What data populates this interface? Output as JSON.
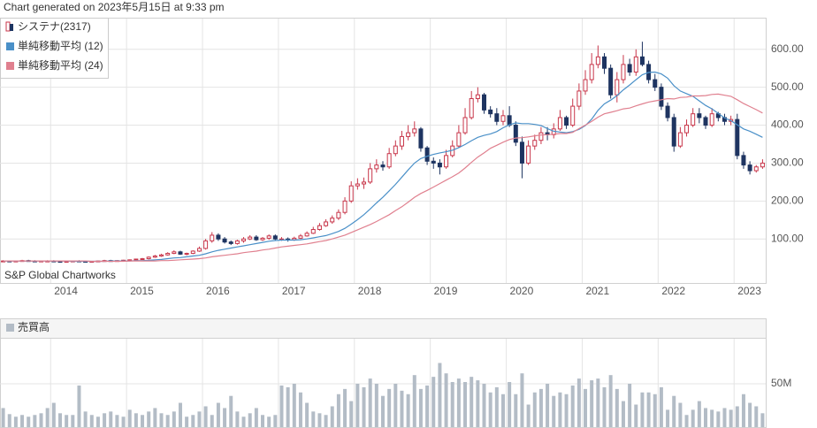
{
  "header": "Chart generated on 2023年5月15日 at 9:33 pm",
  "chart_data": [
    {
      "type": "candlestick",
      "source": "S&P Global Chartworks",
      "categories": [
        null,
        null,
        null,
        null,
        null,
        null,
        null,
        null,
        "2014",
        null,
        null,
        null,
        null,
        null,
        null,
        null,
        null,
        null,
        null,
        null,
        "2015",
        null,
        null,
        null,
        null,
        null,
        null,
        null,
        null,
        null,
        null,
        null,
        "2016",
        null,
        null,
        null,
        null,
        null,
        null,
        null,
        null,
        null,
        null,
        null,
        "2017",
        null,
        null,
        null,
        null,
        null,
        null,
        null,
        null,
        null,
        null,
        null,
        "2018",
        null,
        null,
        null,
        null,
        null,
        null,
        null,
        null,
        null,
        null,
        null,
        "2019",
        null,
        null,
        null,
        null,
        null,
        null,
        null,
        null,
        null,
        null,
        null,
        "2020",
        null,
        null,
        null,
        null,
        null,
        null,
        null,
        null,
        null,
        null,
        null,
        "2021",
        null,
        null,
        null,
        null,
        null,
        null,
        null,
        null,
        null,
        null,
        null,
        "2022",
        null,
        null,
        null,
        null,
        null,
        null,
        null,
        null,
        null,
        null,
        null,
        "2023",
        null,
        null,
        null,
        null
      ],
      "ohlc": {
        "name": "システナ(2317)",
        "up_color": "#c8364a",
        "down_color": "#1e3461",
        "open": [
          42,
          42,
          41,
          42,
          43,
          42,
          41,
          42,
          42,
          41,
          40,
          41,
          42,
          41,
          40,
          41,
          42,
          43,
          42,
          43,
          44,
          45,
          47,
          48,
          52,
          55,
          58,
          62,
          66,
          60,
          62,
          68,
          75,
          95,
          110,
          100,
          92,
          88,
          95,
          100,
          105,
          98,
          102,
          108,
          100,
          100,
          98,
          102,
          108,
          115,
          125,
          135,
          145,
          155,
          170,
          200,
          240,
          245,
          250,
          285,
          295,
          290,
          325,
          345,
          370,
          380,
          390,
          340,
          305,
          300,
          290,
          320,
          345,
          380,
          420,
          470,
          480,
          440,
          430,
          410,
          425,
          400,
          355,
          300,
          345,
          360,
          380,
          375,
          390,
          420,
          400,
          450,
          490,
          520,
          560,
          580,
          550,
          480,
          520,
          560,
          540,
          580,
          560,
          520,
          500,
          450,
          420,
          345,
          380,
          400,
          430,
          420,
          400,
          430,
          420,
          410,
          415,
          320,
          295,
          280,
          290
        ],
        "high": [
          44,
          43,
          43,
          45,
          45,
          44,
          43,
          44,
          44,
          43,
          42,
          43,
          44,
          43,
          42,
          43,
          45,
          45,
          44,
          45,
          46,
          48,
          50,
          54,
          58,
          61,
          65,
          70,
          69,
          64,
          70,
          80,
          100,
          118,
          115,
          105,
          96,
          98,
          105,
          110,
          110,
          105,
          112,
          112,
          105,
          104,
          106,
          113,
          120,
          132,
          142,
          152,
          162,
          178,
          210,
          252,
          260,
          262,
          300,
          310,
          305,
          340,
          360,
          385,
          400,
          410,
          395,
          345,
          315,
          310,
          335,
          360,
          400,
          445,
          490,
          500,
          485,
          450,
          445,
          440,
          450,
          410,
          370,
          360,
          375,
          395,
          395,
          405,
          440,
          425,
          470,
          510,
          545,
          590,
          610,
          590,
          560,
          540,
          585,
          575,
          600,
          620,
          570,
          535,
          510,
          460,
          430,
          395,
          415,
          445,
          445,
          425,
          445,
          435,
          430,
          425,
          430,
          330,
          305,
          295,
          310
        ],
        "low": [
          40,
          39,
          39,
          40,
          40,
          39,
          39,
          40,
          39,
          38,
          38,
          39,
          39,
          38,
          38,
          39,
          40,
          40,
          40,
          41,
          42,
          43,
          45,
          46,
          50,
          53,
          56,
          60,
          58,
          57,
          60,
          66,
          72,
          90,
          95,
          88,
          84,
          85,
          90,
          97,
          95,
          95,
          98,
          97,
          95,
          93,
          95,
          100,
          106,
          113,
          122,
          132,
          140,
          150,
          165,
          195,
          230,
          232,
          245,
          275,
          280,
          285,
          318,
          335,
          360,
          370,
          330,
          295,
          285,
          270,
          285,
          315,
          340,
          375,
          415,
          460,
          430,
          420,
          400,
          400,
          395,
          345,
          260,
          295,
          335,
          350,
          360,
          365,
          385,
          390,
          395,
          440,
          480,
          510,
          550,
          535,
          470,
          460,
          510,
          530,
          530,
          555,
          510,
          490,
          440,
          410,
          330,
          340,
          370,
          395,
          405,
          390,
          395,
          410,
          400,
          400,
          310,
          285,
          270,
          275,
          285
        ],
        "close": [
          42,
          41,
          42,
          43,
          42,
          41,
          42,
          42,
          41,
          40,
          41,
          42,
          41,
          40,
          41,
          42,
          43,
          42,
          43,
          44,
          45,
          47,
          48,
          52,
          55,
          58,
          62,
          66,
          60,
          62,
          68,
          75,
          95,
          110,
          100,
          92,
          88,
          95,
          100,
          105,
          98,
          102,
          108,
          100,
          100,
          98,
          102,
          108,
          115,
          125,
          135,
          145,
          155,
          170,
          200,
          240,
          245,
          250,
          285,
          295,
          290,
          325,
          345,
          370,
          380,
          390,
          340,
          305,
          300,
          290,
          320,
          345,
          380,
          420,
          470,
          480,
          440,
          430,
          410,
          425,
          400,
          355,
          300,
          345,
          360,
          380,
          375,
          390,
          420,
          400,
          450,
          490,
          520,
          560,
          580,
          550,
          480,
          520,
          560,
          540,
          580,
          560,
          520,
          500,
          450,
          420,
          345,
          380,
          400,
          430,
          420,
          400,
          430,
          420,
          410,
          415,
          320,
          295,
          280,
          290,
          300
        ]
      },
      "series": [
        {
          "name": "単純移動平均 (12)",
          "color": "#4a90c8",
          "values": [
            42,
            42,
            42,
            42,
            42,
            42,
            42,
            42,
            42,
            42,
            42,
            41,
            41,
            41,
            41,
            41,
            41,
            42,
            42,
            42,
            42,
            43,
            43,
            44,
            45,
            46,
            48,
            50,
            51,
            53,
            55,
            57,
            61,
            66,
            70,
            73,
            76,
            79,
            82,
            85,
            88,
            91,
            94,
            96,
            97,
            97,
            97,
            98,
            100,
            103,
            106,
            109,
            114,
            120,
            128,
            139,
            151,
            164,
            179,
            195,
            210,
            227,
            244,
            263,
            282,
            300,
            312,
            318,
            323,
            327,
            330,
            334,
            341,
            349,
            359,
            368,
            373,
            377,
            383,
            393,
            401,
            406,
            404,
            404,
            402,
            399,
            391,
            384,
            382,
            380,
            383,
            389,
            399,
            416,
            439,
            456,
            466,
            478,
            493,
            506,
            520,
            533,
            539,
            540,
            535,
            524,
            504,
            490,
            483,
            476,
            464,
            452,
            443,
            431,
            419,
            412,
            401,
            390,
            384,
            376,
            368
          ]
        },
        {
          "name": "単純移動平均 (24)",
          "color": "#e0808f",
          "values": [
            42,
            42,
            42,
            42,
            42,
            42,
            42,
            42,
            42,
            42,
            42,
            42,
            42,
            42,
            41,
            41,
            41,
            41,
            41,
            41,
            42,
            42,
            42,
            42,
            42,
            43,
            43,
            44,
            45,
            46,
            47,
            48,
            50,
            53,
            55,
            57,
            59,
            61,
            64,
            66,
            68,
            71,
            73,
            76,
            79,
            81,
            83,
            85,
            87,
            90,
            93,
            96,
            100,
            105,
            110,
            117,
            124,
            131,
            138,
            146,
            155,
            164,
            175,
            185,
            197,
            210,
            220,
            228,
            237,
            246,
            255,
            264,
            274,
            287,
            302,
            316,
            327,
            339,
            347,
            355,
            362,
            366,
            367,
            369,
            372,
            374,
            375,
            376,
            378,
            378,
            381,
            391,
            400,
            410,
            421,
            430,
            434,
            438,
            443,
            445,
            451,
            456,
            461,
            464,
            467,
            470,
            469,
            473,
            474,
            477,
            477,
            478,
            481,
            482,
            479,
            476,
            467,
            457,
            449,
            441,
            432
          ]
        }
      ],
      "ylim": [
        -16,
        681
      ],
      "yticks": [
        {
          "value": 100,
          "label": "100.00"
        },
        {
          "value": 200,
          "label": "200.00"
        },
        {
          "value": 300,
          "label": "300.00"
        },
        {
          "value": 400,
          "label": "400.00"
        },
        {
          "value": 500,
          "label": "500.00"
        },
        {
          "value": 600,
          "label": "600.00"
        }
      ],
      "grid": true
    },
    {
      "type": "bar",
      "title": "売買高",
      "color": "#b3bcc6",
      "values": [
        22,
        15,
        12,
        14,
        12,
        14,
        16,
        22,
        28,
        16,
        14,
        14,
        48,
        18,
        14,
        12,
        16,
        18,
        14,
        12,
        20,
        16,
        14,
        18,
        22,
        16,
        14,
        18,
        28,
        12,
        14,
        18,
        24,
        14,
        28,
        22,
        36,
        18,
        12,
        16,
        22,
        14,
        12,
        14,
        48,
        46,
        50,
        40,
        28,
        18,
        16,
        14,
        24,
        38,
        44,
        30,
        50,
        46,
        56,
        50,
        36,
        44,
        50,
        42,
        38,
        60,
        44,
        48,
        58,
        74,
        62,
        52,
        56,
        52,
        58,
        54,
        50,
        40,
        46,
        38,
        52,
        38,
        62,
        26,
        40,
        44,
        50,
        36,
        40,
        38,
        48,
        56,
        44,
        54,
        56,
        46,
        60,
        44,
        30,
        50,
        26,
        40,
        40,
        38,
        46,
        20,
        36,
        28,
        14,
        20,
        30,
        22,
        20,
        18,
        22,
        20,
        24,
        38,
        28,
        24,
        16
      ],
      "ylim": [
        0,
        102
      ],
      "yticks": [
        {
          "value": 50,
          "label": "50M"
        }
      ],
      "grid": true
    }
  ]
}
